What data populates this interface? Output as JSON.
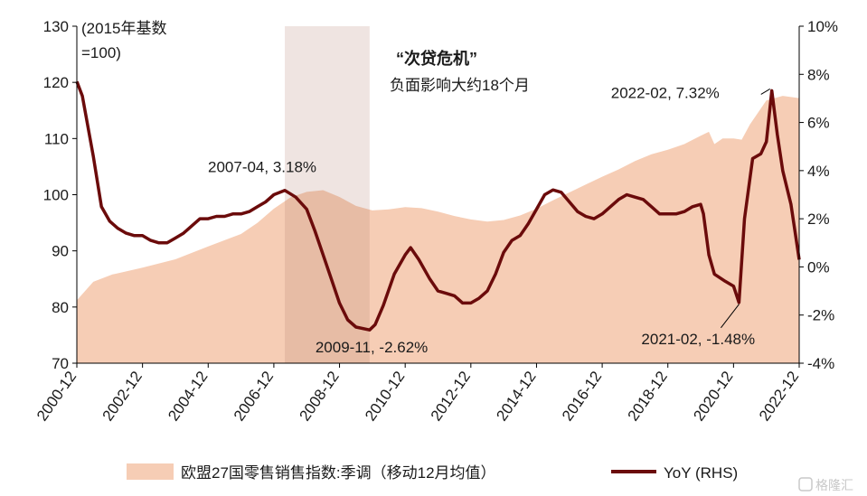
{
  "chart_data": {
    "type": "area",
    "left_axis": {
      "min": 70,
      "max": 130,
      "ticks": [
        70,
        80,
        90,
        100,
        110,
        120,
        130
      ],
      "unit_note": "(2015年基数\n=100)"
    },
    "right_axis": {
      "min": -4,
      "max": 10,
      "ticks": [
        "-4%",
        "-2%",
        "0%",
        "2%",
        "4%",
        "6%",
        "8%",
        "10%"
      ]
    },
    "x_ticks": [
      "2000-12",
      "2002-12",
      "2004-12",
      "2006-12",
      "2008-12",
      "2010-12",
      "2012-12",
      "2014-12",
      "2016-12",
      "2018-12",
      "2020-12",
      "2022-12"
    ],
    "shaded_period": {
      "start": "2007-04",
      "end": "2009-11"
    },
    "shaded_label_line1": "“次贷危机”",
    "shaded_label_line2": "负面影响大约18个月",
    "series": [
      {
        "name": "欧盟27国零售销售指数:季调（移动12月均值）",
        "axis": "left",
        "color": "#f6cdb5",
        "points": [
          [
            "2000-12",
            81.2
          ],
          [
            "2001-06",
            84.5
          ],
          [
            "2002-01",
            85.8
          ],
          [
            "2002-12",
            87.0
          ],
          [
            "2003-12",
            88.5
          ],
          [
            "2004-12",
            90.8
          ],
          [
            "2005-12",
            93.0
          ],
          [
            "2006-06",
            95.0
          ],
          [
            "2006-12",
            97.5
          ],
          [
            "2007-06",
            99.5
          ],
          [
            "2007-12",
            100.5
          ],
          [
            "2008-06",
            100.8
          ],
          [
            "2008-12",
            99.6
          ],
          [
            "2009-06",
            98.0
          ],
          [
            "2009-12",
            97.2
          ],
          [
            "2010-06",
            97.4
          ],
          [
            "2010-12",
            97.8
          ],
          [
            "2011-06",
            97.6
          ],
          [
            "2011-12",
            97.0
          ],
          [
            "2012-06",
            96.2
          ],
          [
            "2012-12",
            95.6
          ],
          [
            "2013-06",
            95.2
          ],
          [
            "2013-12",
            95.5
          ],
          [
            "2014-06",
            96.3
          ],
          [
            "2014-12",
            97.5
          ],
          [
            "2015-06",
            99.0
          ],
          [
            "2015-12",
            100.4
          ],
          [
            "2016-06",
            101.8
          ],
          [
            "2016-12",
            103.2
          ],
          [
            "2017-06",
            104.5
          ],
          [
            "2017-12",
            106.0
          ],
          [
            "2018-06",
            107.2
          ],
          [
            "2018-12",
            108.0
          ],
          [
            "2019-06",
            109.0
          ],
          [
            "2019-12",
            110.5
          ],
          [
            "2020-03",
            111.2
          ],
          [
            "2020-05",
            109.0
          ],
          [
            "2020-08",
            110.0
          ],
          [
            "2020-12",
            110.0
          ],
          [
            "2021-03",
            109.8
          ],
          [
            "2021-06",
            112.5
          ],
          [
            "2021-12",
            116.8
          ],
          [
            "2022-06",
            117.6
          ],
          [
            "2022-12",
            117.2
          ]
        ]
      },
      {
        "name": "YoY (RHS)",
        "axis": "right",
        "color": "#6b0b0b",
        "points": [
          [
            "2000-12",
            7.7
          ],
          [
            "2001-02",
            7.1
          ],
          [
            "2001-06",
            4.6
          ],
          [
            "2001-09",
            2.5
          ],
          [
            "2001-12",
            1.9
          ],
          [
            "2002-03",
            1.6
          ],
          [
            "2002-06",
            1.4
          ],
          [
            "2002-09",
            1.3
          ],
          [
            "2002-12",
            1.3
          ],
          [
            "2003-03",
            1.1
          ],
          [
            "2003-06",
            1.0
          ],
          [
            "2003-09",
            1.0
          ],
          [
            "2003-12",
            1.2
          ],
          [
            "2004-03",
            1.4
          ],
          [
            "2004-06",
            1.7
          ],
          [
            "2004-09",
            2.0
          ],
          [
            "2004-12",
            2.0
          ],
          [
            "2005-03",
            2.1
          ],
          [
            "2005-06",
            2.1
          ],
          [
            "2005-09",
            2.2
          ],
          [
            "2005-12",
            2.2
          ],
          [
            "2006-03",
            2.3
          ],
          [
            "2006-06",
            2.5
          ],
          [
            "2006-09",
            2.7
          ],
          [
            "2006-12",
            3.0
          ],
          [
            "2007-04",
            3.18
          ],
          [
            "2007-08",
            2.9
          ],
          [
            "2007-12",
            2.4
          ],
          [
            "2008-03",
            1.5
          ],
          [
            "2008-06",
            0.5
          ],
          [
            "2008-09",
            -0.5
          ],
          [
            "2008-12",
            -1.5
          ],
          [
            "2009-03",
            -2.2
          ],
          [
            "2009-06",
            -2.5
          ],
          [
            "2009-11",
            -2.62
          ],
          [
            "2010-01",
            -2.4
          ],
          [
            "2010-04",
            -1.6
          ],
          [
            "2010-08",
            -0.3
          ],
          [
            "2010-12",
            0.5
          ],
          [
            "2011-02",
            0.8
          ],
          [
            "2011-05",
            0.3
          ],
          [
            "2011-09",
            -0.5
          ],
          [
            "2011-12",
            -1.0
          ],
          [
            "2012-03",
            -1.1
          ],
          [
            "2012-06",
            -1.2
          ],
          [
            "2012-09",
            -1.5
          ],
          [
            "2012-12",
            -1.5
          ],
          [
            "2013-03",
            -1.3
          ],
          [
            "2013-06",
            -1.0
          ],
          [
            "2013-09",
            -0.3
          ],
          [
            "2013-12",
            0.6
          ],
          [
            "2014-03",
            1.1
          ],
          [
            "2014-06",
            1.3
          ],
          [
            "2014-09",
            1.8
          ],
          [
            "2014-12",
            2.4
          ],
          [
            "2015-03",
            3.0
          ],
          [
            "2015-06",
            3.2
          ],
          [
            "2015-09",
            3.1
          ],
          [
            "2015-12",
            2.7
          ],
          [
            "2016-03",
            2.3
          ],
          [
            "2016-06",
            2.1
          ],
          [
            "2016-09",
            2.0
          ],
          [
            "2016-12",
            2.2
          ],
          [
            "2017-03",
            2.5
          ],
          [
            "2017-06",
            2.8
          ],
          [
            "2017-09",
            3.0
          ],
          [
            "2017-12",
            2.9
          ],
          [
            "2018-03",
            2.8
          ],
          [
            "2018-06",
            2.5
          ],
          [
            "2018-09",
            2.2
          ],
          [
            "2018-12",
            2.2
          ],
          [
            "2019-03",
            2.2
          ],
          [
            "2019-06",
            2.3
          ],
          [
            "2019-09",
            2.5
          ],
          [
            "2019-12",
            2.6
          ],
          [
            "2020-01",
            2.2
          ],
          [
            "2020-03",
            0.5
          ],
          [
            "2020-05",
            -0.3
          ],
          [
            "2020-09",
            -0.6
          ],
          [
            "2020-12",
            -0.8
          ],
          [
            "2021-02",
            -1.48
          ],
          [
            "2021-04",
            2.0
          ],
          [
            "2021-07",
            4.5
          ],
          [
            "2021-10",
            4.7
          ],
          [
            "2021-12",
            5.2
          ],
          [
            "2022-02",
            7.32
          ],
          [
            "2022-04",
            5.5
          ],
          [
            "2022-06",
            4.0
          ],
          [
            "2022-09",
            2.6
          ],
          [
            "2022-12",
            0.3
          ]
        ]
      }
    ],
    "annotations": [
      {
        "label": "2007-04, 3.18%",
        "date": "2007-04",
        "value": 3.18
      },
      {
        "label": "2009-11, -2.62%",
        "date": "2009-11",
        "value": -2.62
      },
      {
        "label": "2021-02, -1.48%",
        "date": "2021-02",
        "value": -1.48
      },
      {
        "label": "2022-02, 7.32%",
        "date": "2022-02",
        "value": 7.32
      }
    ],
    "legend_placement": "bottom",
    "grid": false
  },
  "watermark": "格隆汇"
}
